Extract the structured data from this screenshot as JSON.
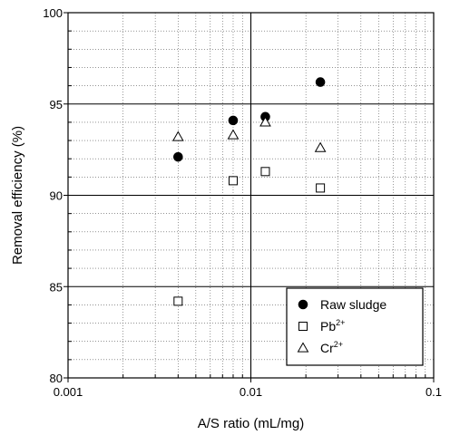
{
  "chart_data": {
    "type": "scatter",
    "xlabel": "A/S ratio (mL/mg)",
    "ylabel": "Removal efficiency (%)",
    "x_scale": "log",
    "xlim": [
      0.001,
      0.1
    ],
    "ylim": [
      80,
      100
    ],
    "x_tick_labels": [
      "0.001",
      "0.01",
      "0.1"
    ],
    "x_tick_values": [
      0.001,
      0.01,
      0.1
    ],
    "y_tick_labels": [
      "80",
      "85",
      "90",
      "95",
      "100"
    ],
    "y_tick_values": [
      80,
      85,
      90,
      95,
      100
    ],
    "grid": "major and minor (dotted), bold major lines at x=0.01 and y=85, 90, 95",
    "legend_placement": "bottom-right",
    "series": [
      {
        "name": "Raw sludge",
        "name_base": "Raw sludge",
        "name_sup": "",
        "marker": "filled-circle",
        "x": [
          0.004,
          0.008,
          0.012,
          0.024
        ],
        "y": [
          92.1,
          94.1,
          94.3,
          96.2
        ]
      },
      {
        "name": "Pb2+",
        "name_base": "Pb",
        "name_sup": "2+",
        "marker": "open-square",
        "x": [
          0.004,
          0.008,
          0.012,
          0.024
        ],
        "y": [
          84.2,
          90.8,
          91.3,
          90.4
        ]
      },
      {
        "name": "Cr2+",
        "name_base": "Cr",
        "name_sup": "2+",
        "marker": "open-triangle",
        "x": [
          0.004,
          0.008,
          0.012,
          0.024
        ],
        "y": [
          93.2,
          93.3,
          94.0,
          92.6
        ]
      }
    ]
  }
}
